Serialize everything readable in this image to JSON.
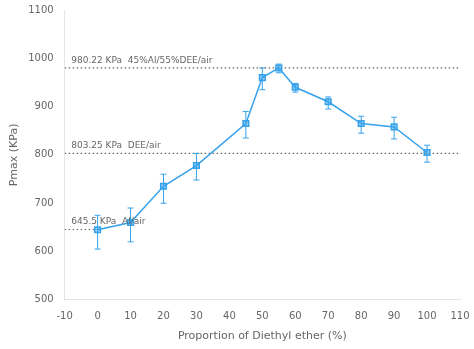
{
  "chart_data": {
    "type": "line",
    "x_label": "Proportion of Diethyl ether (%)",
    "y_label": "Pmax (KPa)",
    "x": [
      0,
      10,
      20,
      30,
      45,
      50,
      55,
      60,
      70,
      80,
      90,
      100
    ],
    "series": [
      {
        "values": [
          645,
          660,
          735,
          778,
          865,
          960,
          980,
          940,
          910,
          865,
          858,
          805
        ],
        "error_low": [
          40,
          40,
          35,
          30,
          30,
          25,
          10,
          10,
          15,
          20,
          25,
          20
        ],
        "error_high": [
          30,
          30,
          25,
          25,
          25,
          20,
          8,
          8,
          10,
          15,
          20,
          15
        ],
        "marker": "square",
        "line_style": "solid"
      }
    ],
    "reference_lines": [
      {
        "y": 980.22,
        "label": "980.22 KPa  45%Al/55%DEE/air",
        "label_x": -8,
        "color": "#666666",
        "line_style": "dotted"
      },
      {
        "y": 803.25,
        "label": "803.25 KPa  DEE/air",
        "label_x": -8,
        "color": "#666666",
        "line_style": "dotted"
      },
      {
        "y": 645.5,
        "label": "645.5 KPa  Al/air",
        "label_x": -8,
        "x_range": [
          -10,
          0
        ],
        "color": "#666666",
        "line_style": "dotted"
      }
    ],
    "xlim": [
      -10,
      110
    ],
    "ylim": [
      500,
      1100
    ],
    "xticks": [
      -10,
      0,
      10,
      20,
      30,
      40,
      50,
      60,
      70,
      80,
      90,
      100,
      110
    ],
    "yticks": [
      500,
      600,
      700,
      800,
      900,
      1000,
      1100
    ],
    "grid": false,
    "legend": false
  }
}
